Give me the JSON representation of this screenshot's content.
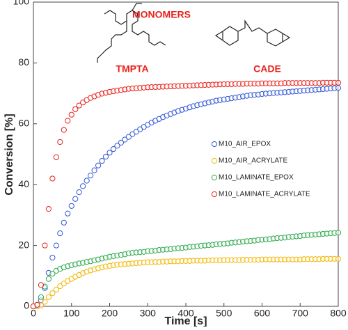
{
  "chart_data": {
    "type": "scatter",
    "annotations": [
      "MONOMERS",
      "TMPTA",
      "CADE"
    ],
    "xlabel": "Time [s]",
    "ylabel": "Conversion [%]",
    "x": [
      0,
      10,
      20,
      30,
      40,
      50,
      60,
      70,
      80,
      90,
      100,
      110,
      120,
      130,
      140,
      150,
      160,
      170,
      180,
      190,
      200,
      210,
      220,
      230,
      240,
      250,
      260,
      270,
      280,
      290,
      300,
      310,
      320,
      330,
      340,
      350,
      360,
      370,
      380,
      390,
      400,
      410,
      420,
      430,
      440,
      450,
      460,
      470,
      480,
      490,
      500,
      510,
      520,
      530,
      540,
      550,
      560,
      570,
      580,
      590,
      600,
      610,
      620,
      630,
      640,
      650,
      660,
      670,
      680,
      690,
      700,
      710,
      720,
      730,
      740,
      750,
      760,
      770,
      780,
      790,
      800
    ],
    "series": [
      {
        "name": "M10_AIR_EPOX",
        "color": "#2f55d4",
        "values": [
          0,
          0,
          2,
          6,
          11,
          16,
          20,
          24,
          27.5,
          30.5,
          33,
          35.3,
          37.5,
          39.5,
          41.3,
          43,
          44.7,
          46.3,
          47.8,
          49.2,
          50.5,
          51.7,
          52.8,
          53.8,
          54.8,
          55.7,
          56.6,
          57.4,
          58.2,
          59,
          59.7,
          60.4,
          61,
          61.6,
          62.2,
          62.7,
          63.2,
          63.7,
          64.2,
          64.6,
          65,
          65.4,
          65.8,
          66.1,
          66.4,
          66.7,
          67,
          67.3,
          67.6,
          67.8,
          68,
          68.2,
          68.4,
          68.6,
          68.8,
          69,
          69.2,
          69.4,
          69.5,
          69.6,
          69.8,
          69.9,
          70,
          70.1,
          70.2,
          70.3,
          70.4,
          70.5,
          70.6,
          70.7,
          70.8,
          70.9,
          71,
          71.1,
          71.2,
          71.3,
          71.4,
          71.5,
          71.6,
          71.7,
          71.8
        ]
      },
      {
        "name": "M10_AIR_ACRYLATE",
        "color": "#f2b600",
        "values": [
          0,
          0,
          0.3,
          1.5,
          3,
          4.3,
          5.5,
          6.6,
          7.5,
          8.3,
          9,
          9.7,
          10.3,
          10.9,
          11.4,
          11.8,
          12.2,
          12.5,
          12.8,
          13.1,
          13.3,
          13.5,
          13.7,
          13.8,
          13.9,
          14,
          14.1,
          14.2,
          14.3,
          14.4,
          14.5,
          14.5,
          14.6,
          14.6,
          14.7,
          14.7,
          14.8,
          14.8,
          14.8,
          14.9,
          14.9,
          14.9,
          15,
          15,
          15,
          15,
          15.1,
          15.1,
          15.1,
          15.1,
          15.2,
          15.2,
          15.2,
          15.2,
          15.2,
          15.3,
          15.3,
          15.3,
          15.3,
          15.3,
          15.4,
          15.4,
          15.4,
          15.4,
          15.4,
          15.4,
          15.4,
          15.4,
          15.4,
          15.4,
          15.4,
          15.5,
          15.5,
          15.5,
          15.5,
          15.5,
          15.6,
          15.6,
          15.6,
          15.6,
          15.6
        ]
      },
      {
        "name": "M10_LAMINATE_EPOX",
        "color": "#2ba84a",
        "values": [
          0,
          0.5,
          3,
          6.5,
          9,
          10.7,
          11.7,
          12.3,
          12.8,
          13.2,
          13.5,
          13.8,
          14.1,
          14.3,
          14.6,
          14.8,
          15.1,
          15.4,
          15.7,
          16,
          16.3,
          16.5,
          16.7,
          16.9,
          17.1,
          17.4,
          17.6,
          17.7,
          17.8,
          17.9,
          18.1,
          18.2,
          18.3,
          18.5,
          18.6,
          18.7,
          18.8,
          19,
          19.1,
          19.2,
          19.3,
          19.5,
          19.6,
          19.7,
          19.9,
          20,
          20.1,
          20.2,
          20.4,
          20.5,
          20.6,
          20.7,
          20.9,
          21,
          21.1,
          21.3,
          21.4,
          21.5,
          21.6,
          21.8,
          21.9,
          22,
          22.1,
          22.3,
          22.4,
          22.5,
          22.6,
          22.8,
          22.9,
          23,
          23.1,
          23.3,
          23.4,
          23.5,
          23.6,
          23.7,
          23.8,
          23.9,
          24,
          24.1,
          24.2
        ]
      },
      {
        "name": "M10_LAMINATE_ACRYLATE",
        "color": "#e8221c",
        "values": [
          0,
          0.5,
          7,
          20,
          32,
          42,
          49,
          54,
          58,
          61,
          63,
          64.8,
          66,
          67,
          67.8,
          68.5,
          69,
          69.5,
          69.9,
          70.2,
          70.5,
          70.7,
          70.9,
          71.1,
          71.3,
          71.5,
          71.6,
          71.7,
          71.8,
          71.9,
          72,
          72.05,
          72.1,
          72.15,
          72.2,
          72.25,
          72.3,
          72.35,
          72.4,
          72.45,
          72.5,
          72.55,
          72.6,
          72.65,
          72.7,
          72.75,
          72.8,
          72.85,
          72.9,
          72.95,
          73,
          73,
          73,
          73.1,
          73.1,
          73.1,
          73.2,
          73.2,
          73.2,
          73.2,
          73.3,
          73.3,
          73.3,
          73.3,
          73.3,
          73.3,
          73.4,
          73.4,
          73.4,
          73.4,
          73.4,
          73.4,
          73.4,
          73.4,
          73.4,
          73.4,
          73.5,
          73.5,
          73.5,
          73.5,
          73.5
        ]
      }
    ],
    "xlim": [
      0,
      800
    ],
    "xticks": [
      0,
      100,
      200,
      300,
      400,
      500,
      600,
      700,
      800
    ],
    "ylim": [
      0,
      100
    ],
    "yticks": [
      0,
      20,
      40,
      60,
      80,
      100
    ]
  }
}
